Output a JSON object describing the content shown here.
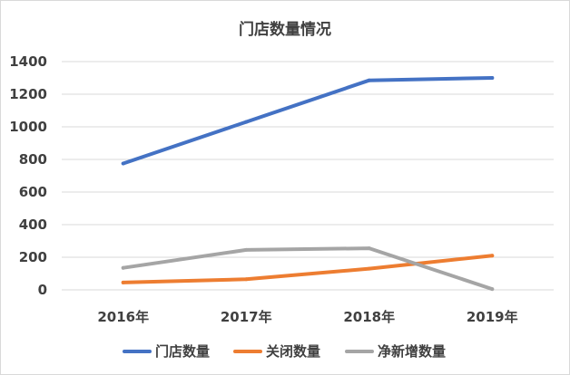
{
  "chart_data": {
    "type": "line",
    "title": "门店数量情况",
    "categories": [
      "2016年",
      "2017年",
      "2018年",
      "2019年"
    ],
    "series": [
      {
        "name": "门店数量",
        "values": [
          775,
          1030,
          1285,
          1300
        ],
        "color": "#4472C4"
      },
      {
        "name": "关闭数量",
        "values": [
          45,
          65,
          130,
          210
        ],
        "color": "#ED7D31"
      },
      {
        "name": "净新增数量",
        "values": [
          135,
          245,
          255,
          5
        ],
        "color": "#A5A5A5"
      }
    ],
    "ylim": [
      0,
      1400
    ],
    "yticks": [
      "0",
      "200",
      "400",
      "600",
      "800",
      "1000",
      "1200",
      "1400"
    ],
    "xlabel": "",
    "ylabel": "",
    "grid": true,
    "legend_position": "bottom"
  }
}
